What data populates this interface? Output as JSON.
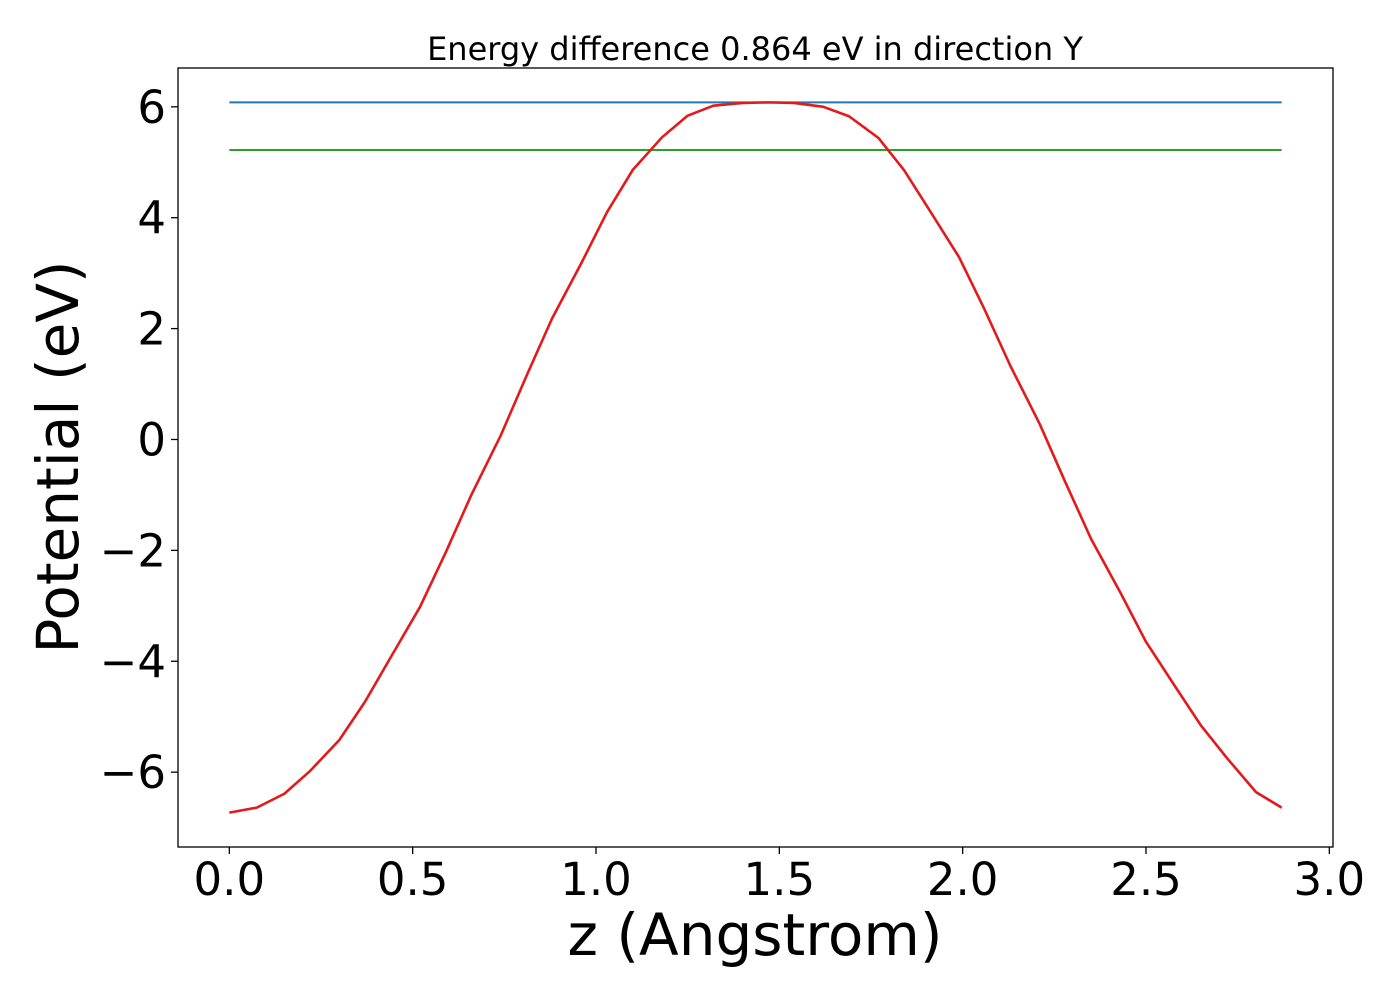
{
  "chart_data": {
    "type": "line",
    "title": "Energy difference 0.864 eV in direction Y",
    "xlabel": "z (Angstrom)",
    "ylabel": "Potential (eV)",
    "xlim": [
      -0.14,
      3.01
    ],
    "ylim": [
      -7.35,
      6.7
    ],
    "xticks": [
      0.0,
      0.5,
      1.0,
      1.5,
      2.0,
      2.5,
      3.0
    ],
    "xtick_labels": [
      "0.0",
      "0.5",
      "1.0",
      "1.5",
      "2.0",
      "2.5",
      "3.0"
    ],
    "yticks": [
      -6,
      -4,
      -2,
      0,
      2,
      4,
      6
    ],
    "ytick_labels": [
      "−6",
      "−4",
      "−2",
      "0",
      "2",
      "4",
      "6"
    ],
    "grid": false,
    "legend": "none",
    "series": [
      {
        "color": "#1f77b4",
        "x": [
          0.0,
          2.87
        ],
        "y": [
          6.08,
          6.08
        ]
      },
      {
        "color": "#2ca02c",
        "x": [
          0.0,
          2.87
        ],
        "y": [
          5.22,
          5.22
        ]
      },
      {
        "color": "#e31a1c",
        "x": [
          0.0,
          0.075,
          0.15,
          0.22,
          0.3,
          0.37,
          0.44,
          0.52,
          0.59,
          0.66,
          0.74,
          0.81,
          0.88,
          0.96,
          1.03,
          1.1,
          1.18,
          1.25,
          1.32,
          1.4,
          1.47,
          1.54,
          1.62,
          1.69,
          1.77,
          1.84,
          1.91,
          1.99,
          2.06,
          2.13,
          2.21,
          2.28,
          2.35,
          2.43,
          2.5,
          2.58,
          2.65,
          2.72,
          2.8,
          2.87
        ],
        "y": [
          -6.73,
          -6.64,
          -6.39,
          -5.98,
          -5.42,
          -4.73,
          -3.93,
          -3.02,
          -2.04,
          -1.0,
          0.07,
          1.14,
          2.18,
          3.18,
          4.1,
          4.86,
          5.45,
          5.84,
          6.02,
          6.07,
          6.08,
          6.07,
          6.0,
          5.83,
          5.44,
          4.86,
          4.13,
          3.29,
          2.34,
          1.33,
          0.28,
          -0.77,
          -1.79,
          -2.76,
          -3.65,
          -4.46,
          -5.16,
          -5.74,
          -6.36,
          -6.64
        ]
      }
    ]
  }
}
